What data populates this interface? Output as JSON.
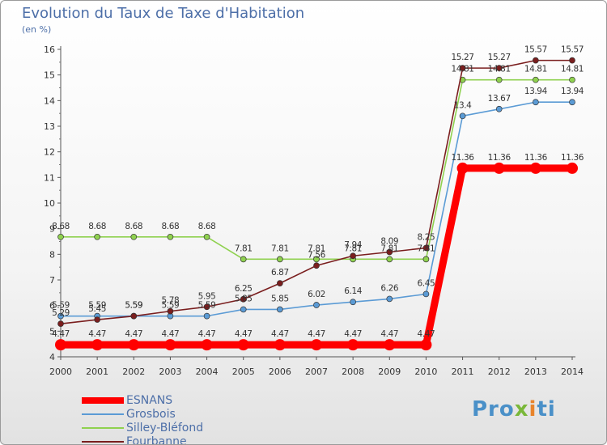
{
  "header": {
    "title": "Evolution du Taux de Taxe d'Habitation",
    "subtitle": "(en %)"
  },
  "chart_data": {
    "type": "line",
    "x": [
      2000,
      2001,
      2002,
      2003,
      2004,
      2005,
      2006,
      2007,
      2008,
      2009,
      2010,
      2011,
      2012,
      2013,
      2014
    ],
    "ylim": [
      4,
      16
    ],
    "yticks": [
      4,
      5,
      6,
      7,
      8,
      9,
      10,
      11,
      12,
      13,
      14,
      15,
      16
    ],
    "grid": false,
    "legend_position": "bottom-left",
    "series": [
      {
        "name": "ESNANS",
        "color": "#ff0000",
        "values": [
          4.47,
          4.47,
          4.47,
          4.47,
          4.47,
          4.47,
          4.47,
          4.47,
          4.47,
          4.47,
          4.47,
          11.36,
          11.36,
          11.36,
          11.36
        ]
      },
      {
        "name": "Grosbois",
        "color": "#5b9bd5",
        "values": [
          5.59,
          5.59,
          5.59,
          5.59,
          5.59,
          5.85,
          5.85,
          6.02,
          6.14,
          6.26,
          6.45,
          13.4,
          13.67,
          13.94,
          13.94
        ]
      },
      {
        "name": "Silley-Bléfond",
        "color": "#8fd14f",
        "values": [
          8.68,
          8.68,
          8.68,
          8.68,
          8.68,
          7.81,
          7.81,
          7.81,
          7.81,
          7.81,
          7.81,
          14.81,
          14.81,
          14.81,
          14.81
        ]
      },
      {
        "name": "Fourbanne",
        "color": "#7a1e1e",
        "values": [
          5.29,
          5.45,
          5.59,
          5.78,
          5.95,
          6.25,
          6.87,
          7.56,
          7.94,
          8.09,
          8.25,
          15.27,
          15.27,
          15.57,
          15.57
        ]
      }
    ]
  },
  "logo": {
    "p1": "Pro",
    "x": "x",
    "i": "i",
    "p2": "ti"
  }
}
